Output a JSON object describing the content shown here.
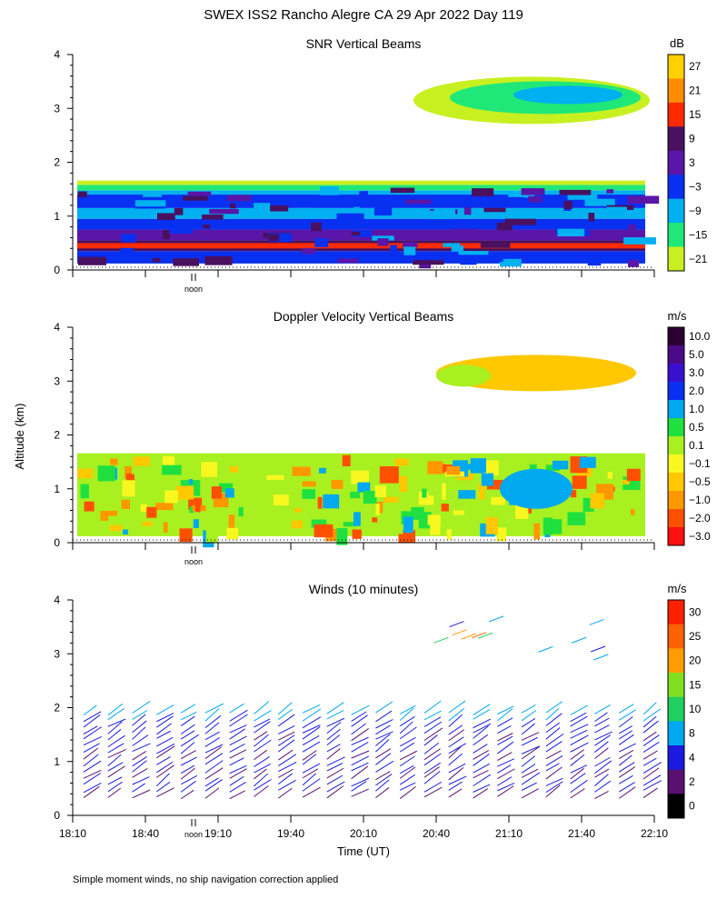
{
  "chart_data": {
    "type": "heatmap",
    "title": "SWEX ISS2 Rancho Alegre CA  29 Apr 2022 Day 119",
    "ylabel": "Altitude (km)",
    "xlabel": "Time (UT)",
    "footnote": "Simple moment winds, no ship navigation correction applied",
    "noon_label": "noon",
    "x_ticks": [
      "18:10",
      "18:40",
      "19:10",
      "19:40",
      "20:10",
      "20:40",
      "21:10",
      "21:40",
      "22:10"
    ],
    "y_ticks": [
      "0",
      "1",
      "2",
      "3",
      "4"
    ],
    "ylim": [
      0,
      4
    ],
    "panels": [
      {
        "title": "SNR Vertical Beams",
        "unit": "dB",
        "colorbar_labels": [
          "27",
          "21",
          "15",
          "9",
          "3",
          "−3",
          "−9",
          "−15",
          "−21"
        ],
        "colors": [
          "#ffd000",
          "#ff8c00",
          "#ff2a00",
          "#4a1060",
          "#5a16a8",
          "#0830f0",
          "#00b0f0",
          "#20e878",
          "#c8f020"
        ]
      },
      {
        "title": "Doppler Velocity Vertical Beams",
        "unit": "m/s",
        "colorbar_labels": [
          "10.0",
          "5.0",
          "3.0",
          "2.0",
          "1.0",
          "0.5",
          "0.1",
          "−0.1",
          "−0.5",
          "−1.0",
          "−2.0",
          "−3.0"
        ],
        "colors": [
          "#2a0030",
          "#4b0a88",
          "#3a10d0",
          "#0830f0",
          "#00a8f0",
          "#20e040",
          "#a8f020",
          "#f8f820",
          "#ffc800",
          "#ff9800",
          "#ff5000",
          "#ff1010"
        ]
      },
      {
        "title": "Winds (10 minutes)",
        "unit": "m/s",
        "colorbar_labels": [
          "30",
          "25",
          "20",
          "15",
          "10",
          "8",
          "4",
          "2",
          "0"
        ],
        "colors": [
          "#ff2000",
          "#ff6000",
          "#ff9c00",
          "#80e020",
          "#20d060",
          "#00a8f0",
          "#1a1ae0",
          "#5a1070",
          "#000000"
        ]
      }
    ]
  }
}
